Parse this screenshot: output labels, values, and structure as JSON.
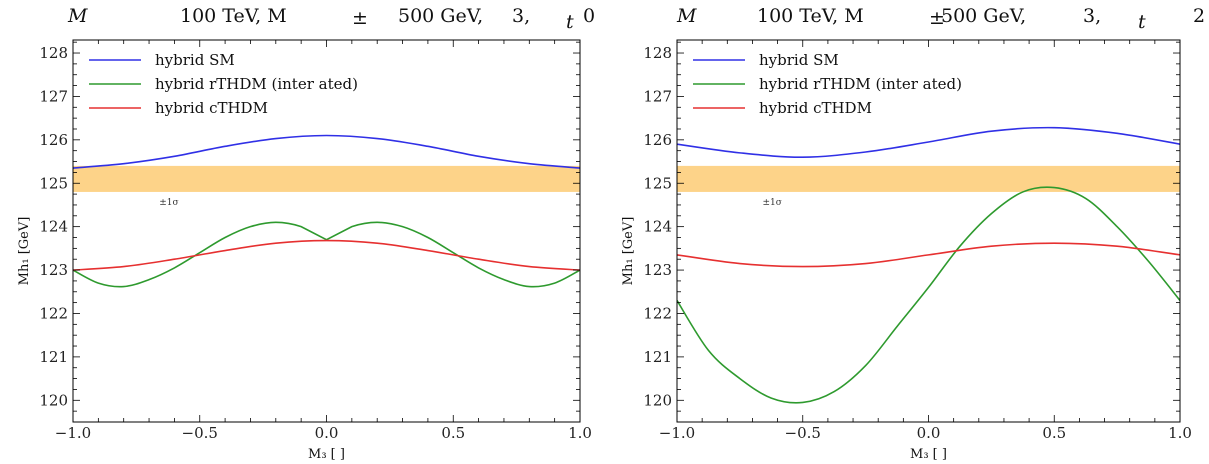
{
  "chart_data": [
    {
      "type": "line",
      "title": {
        "mass": "M",
        "sep1": "100 TeV, M",
        "pm": "±",
        "sep2": "500 GeV,",
        "val1": "3,",
        "sub": "t",
        "val2": "0"
      },
      "xlabel": "M₃ [ ]",
      "ylabel": "Mh₁ [GeV]",
      "xlim": [
        -1.0,
        1.0
      ],
      "ylim": [
        119.5,
        128.3
      ],
      "xticks": [
        -1.0,
        -0.5,
        0.0,
        0.5,
        1.0
      ],
      "xtick_labels": [
        "−1.0",
        "−0.5",
        "0.0",
        "0.5",
        "1.0"
      ],
      "yticks": [
        120,
        121,
        122,
        123,
        124,
        125,
        126,
        127,
        128
      ],
      "band": {
        "ymin": 124.8,
        "ymax": 125.4,
        "color": "#fdd389",
        "label": "±1σ"
      },
      "legend_position": "top-left",
      "series": [
        {
          "name": "hybrid SM",
          "color": "#3030e6",
          "x": [
            -1.0,
            -0.8,
            -0.6,
            -0.4,
            -0.2,
            0.0,
            0.2,
            0.4,
            0.6,
            0.8,
            1.0
          ],
          "y": [
            125.35,
            125.45,
            125.62,
            125.85,
            126.03,
            126.1,
            126.03,
            125.85,
            125.62,
            125.45,
            125.35
          ]
        },
        {
          "name": "hybrid rTHDM (inter     ated)",
          "color": "#2e9a2e",
          "x": [
            -1.0,
            -0.9,
            -0.8,
            -0.7,
            -0.6,
            -0.5,
            -0.4,
            -0.3,
            -0.2,
            -0.1,
            0.0,
            0.1,
            0.2,
            0.3,
            0.4,
            0.5,
            0.6,
            0.7,
            0.8,
            0.9,
            1.0
          ],
          "y": [
            123.0,
            122.7,
            122.62,
            122.78,
            123.05,
            123.4,
            123.75,
            124.0,
            124.1,
            124.0,
            123.7,
            124.0,
            124.1,
            124.0,
            123.75,
            123.4,
            123.05,
            122.78,
            122.62,
            122.7,
            123.0
          ]
        },
        {
          "name": "hybrid cTHDM",
          "color": "#e63030",
          "x": [
            -1.0,
            -0.8,
            -0.6,
            -0.4,
            -0.2,
            0.0,
            0.2,
            0.4,
            0.6,
            0.8,
            1.0
          ],
          "y": [
            123.0,
            123.08,
            123.25,
            123.45,
            123.62,
            123.68,
            123.62,
            123.45,
            123.25,
            123.08,
            123.0
          ]
        }
      ]
    },
    {
      "type": "line",
      "title": {
        "mass": "M",
        "sep1": "100 TeV, M",
        "pm": "±",
        "sep2": "500 GeV,",
        "val1": "3,",
        "sub": "t",
        "val2": "2"
      },
      "xlabel": "M₃ [ ]",
      "ylabel": "Mh₁ [GeV]",
      "xlim": [
        -1.0,
        1.0
      ],
      "ylim": [
        119.5,
        128.3
      ],
      "xticks": [
        -1.0,
        -0.5,
        0.0,
        0.5,
        1.0
      ],
      "xtick_labels": [
        "−1.0",
        "−0.5",
        "0.0",
        "0.5",
        "1.0"
      ],
      "yticks": [
        120,
        121,
        122,
        123,
        124,
        125,
        126,
        127,
        128
      ],
      "band": {
        "ymin": 124.8,
        "ymax": 125.4,
        "color": "#fdd389",
        "label": "±1σ"
      },
      "legend_position": "top-left",
      "series": [
        {
          "name": "hybrid SM",
          "color": "#3030e6",
          "x": [
            -1.0,
            -0.75,
            -0.5,
            -0.25,
            0.0,
            0.25,
            0.5,
            0.75,
            1.0
          ],
          "y": [
            125.9,
            125.7,
            125.6,
            125.72,
            125.95,
            126.2,
            126.28,
            126.15,
            125.9
          ]
        },
        {
          "name": "hybrid rTHDM (inter     ated)",
          "color": "#2e9a2e",
          "x": [
            -1.0,
            -0.875,
            -0.75,
            -0.625,
            -0.5,
            -0.375,
            -0.25,
            -0.125,
            0.0,
            0.125,
            0.25,
            0.375,
            0.5,
            0.625,
            0.75,
            0.875,
            1.0
          ],
          "y": [
            122.3,
            121.15,
            120.5,
            120.05,
            119.95,
            120.2,
            120.8,
            121.7,
            122.6,
            123.55,
            124.3,
            124.8,
            124.9,
            124.65,
            124.0,
            123.2,
            122.3
          ]
        },
        {
          "name": "hybrid cTHDM",
          "color": "#e63030",
          "x": [
            -1.0,
            -0.75,
            -0.5,
            -0.25,
            0.0,
            0.25,
            0.5,
            0.75,
            1.0
          ],
          "y": [
            123.35,
            123.15,
            123.08,
            123.15,
            123.35,
            123.55,
            123.62,
            123.55,
            123.35
          ]
        }
      ]
    }
  ]
}
